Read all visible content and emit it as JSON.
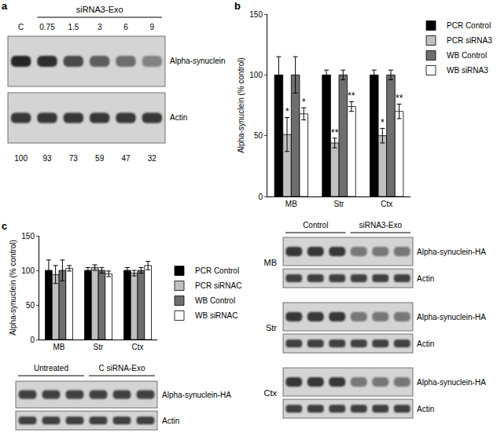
{
  "chart_data": [
    {
      "type": "bar",
      "panel_label": "b",
      "categories": [
        "MB",
        "Str",
        "Ctx"
      ],
      "y_label": "Alpha-synuclein (% control)",
      "ylim": [
        0,
        150
      ],
      "yticks": [
        0,
        50,
        100,
        150
      ],
      "legend": "right",
      "series": [
        {
          "name": "PCR Control",
          "color": "#000000",
          "values": [
            100,
            100,
            100
          ],
          "errors": [
            15,
            4,
            4
          ]
        },
        {
          "name": "PCR siRNA3",
          "color": "#c0c0c0",
          "values": [
            51,
            44,
            50
          ],
          "errors": [
            14,
            4,
            6
          ]
        },
        {
          "name": "WB Control",
          "color": "#6e6e6e",
          "values": [
            100,
            100,
            100
          ],
          "errors": [
            15,
            4,
            4
          ]
        },
        {
          "name": "WB siRNA3",
          "color": "#ffffff",
          "values": [
            68,
            74,
            70
          ],
          "errors": [
            5,
            4,
            6
          ]
        }
      ],
      "annotations": [
        {
          "text": "*",
          "category": "MB",
          "series": "PCR siRNA3"
        },
        {
          "text": "*",
          "category": "MB",
          "series": "WB siRNA3"
        },
        {
          "text": "**",
          "category": "Str",
          "series": "PCR siRNA3"
        },
        {
          "text": "**",
          "category": "Str",
          "series": "WB siRNA3"
        },
        {
          "text": "*",
          "category": "Ctx",
          "series": "PCR siRNA3"
        },
        {
          "text": "**",
          "category": "Ctx",
          "series": "WB siRNA3"
        }
      ]
    },
    {
      "type": "bar",
      "panel_label": "c",
      "categories": [
        "MB",
        "Str",
        "Ctx"
      ],
      "y_label": "Alpha-synuclein (% control)",
      "ylim": [
        0,
        150
      ],
      "yticks": [
        0,
        50,
        100,
        150
      ],
      "legend": "right",
      "series": [
        {
          "name": "PCR Control",
          "color": "#000000",
          "values": [
            100,
            100,
            100
          ],
          "errors": [
            15,
            4,
            4
          ]
        },
        {
          "name": "PCR siRNAC",
          "color": "#c0c0c0",
          "values": [
            94,
            104,
            96
          ],
          "errors": [
            13,
            4,
            4
          ]
        },
        {
          "name": "WB Control",
          "color": "#6e6e6e",
          "values": [
            100,
            100,
            100
          ],
          "errors": [
            15,
            4,
            4
          ]
        },
        {
          "name": "WB siRNAC",
          "color": "#ffffff",
          "values": [
            103,
            95,
            107
          ],
          "errors": [
            4,
            4,
            6
          ]
        }
      ],
      "annotations": []
    }
  ],
  "blot_a": {
    "panel_label": "a",
    "header": "siRNA3-Exo",
    "lanes": [
      "C",
      "0.75",
      "1.5",
      "3",
      "6",
      "9"
    ],
    "rows": [
      "Alpha-synuclein",
      "Actin"
    ],
    "band_values": [
      100,
      93,
      73,
      59,
      47,
      32
    ]
  },
  "blot_c_control": {
    "groups": [
      "Untreated",
      "C siRNA-Exo"
    ],
    "rows": [
      "Alpha-synuclein-HA",
      "Actin"
    ]
  },
  "blot_c_regions": {
    "groups": [
      "Control",
      "siRNA3-Exo"
    ],
    "regions": [
      "MB",
      "Str",
      "Ctx"
    ],
    "rows": [
      "Alpha-synuclein-HA",
      "Actin"
    ]
  }
}
